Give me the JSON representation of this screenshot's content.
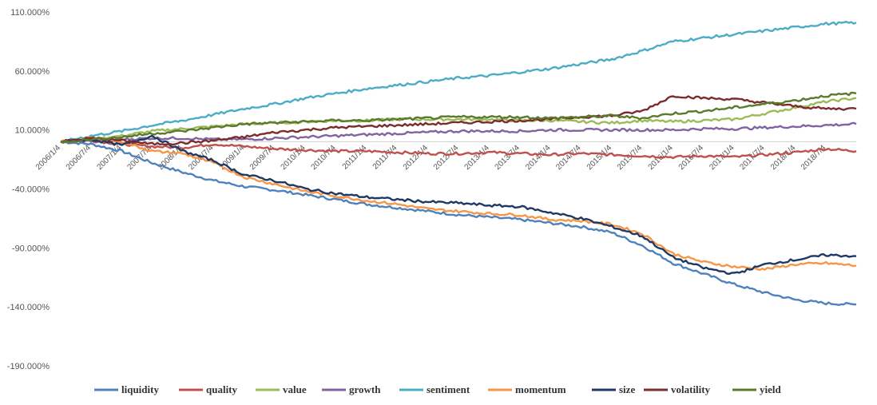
{
  "chart_data": {
    "type": "line",
    "title": "",
    "xlabel": "",
    "ylabel": "",
    "ylim": [
      -190,
      110
    ],
    "yticks": [
      "110.000%",
      "60.000%",
      "10.000%",
      "-40.000%",
      "-90.000%",
      "-140.000%",
      "-190.000%"
    ],
    "ytick_values": [
      110,
      60,
      10,
      -40,
      -90,
      -140,
      -190
    ],
    "xticks": [
      "2006/1/4",
      "2006/7/4",
      "2007/1/4",
      "2007/7/4",
      "2008/1/4",
      "2008/7/4",
      "2009/1/4",
      "2009/7/4",
      "2010/1/4",
      "2010/7/4",
      "2011/1/4",
      "2011/7/4",
      "2012/1/4",
      "2012/7/4",
      "2013/1/4",
      "2013/7/4",
      "2014/1/4",
      "2014/7/4",
      "2015/1/4",
      "2015/7/4",
      "2016/1/4",
      "2016/7/4",
      "2017/1/4",
      "2017/7/4",
      "2018/1/4",
      "2018/7/4"
    ],
    "x_range": [
      "2006/1/4",
      "2018/12/31"
    ],
    "grid": false,
    "legend_position": "bottom",
    "series": [
      {
        "name": "liquidity",
        "color": "#4F81BD",
        "points": [
          [
            "2006/1/4",
            0
          ],
          [
            "2006/7/4",
            -2
          ],
          [
            "2007/1/4",
            -8
          ],
          [
            "2007/7/4",
            -18
          ],
          [
            "2008/1/4",
            -26
          ],
          [
            "2008/7/4",
            -33
          ],
          [
            "2009/1/4",
            -38
          ],
          [
            "2009/7/4",
            -41
          ],
          [
            "2010/1/4",
            -45
          ],
          [
            "2010/7/4",
            -49
          ],
          [
            "2011/1/4",
            -53
          ],
          [
            "2011/7/4",
            -56
          ],
          [
            "2012/1/4",
            -59
          ],
          [
            "2012/7/4",
            -62
          ],
          [
            "2013/1/4",
            -64
          ],
          [
            "2013/7/4",
            -66
          ],
          [
            "2014/1/4",
            -69
          ],
          [
            "2014/7/4",
            -72
          ],
          [
            "2015/1/4",
            -77
          ],
          [
            "2015/7/4",
            -88
          ],
          [
            "2016/1/4",
            -103
          ],
          [
            "2016/7/4",
            -112
          ],
          [
            "2017/1/4",
            -121
          ],
          [
            "2017/7/4",
            -128
          ],
          [
            "2018/1/4",
            -134
          ],
          [
            "2018/7/4",
            -137
          ],
          [
            "2018/12/31",
            -138
          ]
        ]
      },
      {
        "name": "quality",
        "color": "#C0504D",
        "points": [
          [
            "2006/1/4",
            0
          ],
          [
            "2006/7/4",
            1
          ],
          [
            "2007/1/4",
            -2
          ],
          [
            "2007/7/4",
            -4
          ],
          [
            "2008/1/4",
            -5
          ],
          [
            "2008/7/4",
            -2
          ],
          [
            "2009/1/4",
            -4
          ],
          [
            "2009/7/4",
            -6
          ],
          [
            "2010/1/4",
            -7
          ],
          [
            "2010/7/4",
            -8
          ],
          [
            "2011/1/4",
            -8
          ],
          [
            "2011/7/4",
            -9
          ],
          [
            "2012/1/4",
            -10
          ],
          [
            "2012/7/4",
            -10
          ],
          [
            "2013/1/4",
            -9
          ],
          [
            "2013/7/4",
            -10
          ],
          [
            "2014/1/4",
            -11
          ],
          [
            "2014/7/4",
            -10
          ],
          [
            "2015/1/4",
            -11
          ],
          [
            "2015/7/4",
            -12
          ],
          [
            "2016/1/4",
            -13
          ],
          [
            "2016/7/4",
            -12
          ],
          [
            "2017/1/4",
            -13
          ],
          [
            "2017/7/4",
            -11
          ],
          [
            "2018/1/4",
            -9
          ],
          [
            "2018/7/4",
            -6
          ],
          [
            "2018/12/31",
            -8
          ]
        ]
      },
      {
        "name": "value",
        "color": "#9BBB59",
        "points": [
          [
            "2006/1/4",
            0
          ],
          [
            "2006/7/4",
            2
          ],
          [
            "2007/1/4",
            5
          ],
          [
            "2007/7/4",
            9
          ],
          [
            "2008/1/4",
            11
          ],
          [
            "2008/7/4",
            13
          ],
          [
            "2009/1/4",
            15
          ],
          [
            "2009/7/4",
            16
          ],
          [
            "2010/1/4",
            17
          ],
          [
            "2010/7/4",
            18
          ],
          [
            "2011/1/4",
            18
          ],
          [
            "2011/7/4",
            19
          ],
          [
            "2012/1/4",
            19
          ],
          [
            "2012/7/4",
            19
          ],
          [
            "2013/1/4",
            19
          ],
          [
            "2013/7/4",
            18
          ],
          [
            "2014/1/4",
            18
          ],
          [
            "2014/7/4",
            17
          ],
          [
            "2015/1/4",
            16
          ],
          [
            "2015/7/4",
            18
          ],
          [
            "2016/1/4",
            17
          ],
          [
            "2016/7/4",
            18
          ],
          [
            "2017/1/4",
            19
          ],
          [
            "2017/7/4",
            24
          ],
          [
            "2018/1/4",
            29
          ],
          [
            "2018/7/4",
            34
          ],
          [
            "2018/12/31",
            37
          ]
        ]
      },
      {
        "name": "growth",
        "color": "#8064A2",
        "points": [
          [
            "2006/1/4",
            0
          ],
          [
            "2006/7/4",
            1
          ],
          [
            "2007/1/4",
            2
          ],
          [
            "2007/7/4",
            3
          ],
          [
            "2008/1/4",
            3
          ],
          [
            "2008/7/4",
            2
          ],
          [
            "2009/1/4",
            2
          ],
          [
            "2009/7/4",
            3
          ],
          [
            "2010/1/4",
            4
          ],
          [
            "2010/7/4",
            5
          ],
          [
            "2011/1/4",
            6
          ],
          [
            "2011/7/4",
            7
          ],
          [
            "2012/1/4",
            8
          ],
          [
            "2012/7/4",
            9
          ],
          [
            "2013/1/4",
            9
          ],
          [
            "2013/7/4",
            9
          ],
          [
            "2014/1/4",
            10
          ],
          [
            "2014/7/4",
            10
          ],
          [
            "2015/1/4",
            10
          ],
          [
            "2015/7/4",
            10
          ],
          [
            "2016/1/4",
            10
          ],
          [
            "2016/7/4",
            11
          ],
          [
            "2017/1/4",
            11
          ],
          [
            "2017/7/4",
            12
          ],
          [
            "2018/1/4",
            13
          ],
          [
            "2018/7/4",
            14
          ],
          [
            "2018/12/31",
            15
          ]
        ]
      },
      {
        "name": "sentiment",
        "color": "#4BACC6",
        "points": [
          [
            "2006/1/4",
            0
          ],
          [
            "2006/7/4",
            5
          ],
          [
            "2007/1/4",
            9
          ],
          [
            "2007/7/4",
            14
          ],
          [
            "2008/1/4",
            18
          ],
          [
            "2008/7/4",
            23
          ],
          [
            "2009/1/4",
            28
          ],
          [
            "2009/7/4",
            32
          ],
          [
            "2010/1/4",
            37
          ],
          [
            "2010/7/4",
            41
          ],
          [
            "2011/1/4",
            45
          ],
          [
            "2011/7/4",
            48
          ],
          [
            "2012/1/4",
            51
          ],
          [
            "2012/7/4",
            54
          ],
          [
            "2013/1/4",
            56
          ],
          [
            "2013/7/4",
            59
          ],
          [
            "2014/1/4",
            62
          ],
          [
            "2014/7/4",
            66
          ],
          [
            "2015/1/4",
            70
          ],
          [
            "2015/7/4",
            77
          ],
          [
            "2016/1/4",
            85
          ],
          [
            "2016/7/4",
            88
          ],
          [
            "2017/1/4",
            91
          ],
          [
            "2017/7/4",
            94
          ],
          [
            "2018/1/4",
            97
          ],
          [
            "2018/7/4",
            100
          ],
          [
            "2018/12/31",
            101
          ]
        ]
      },
      {
        "name": "momentum",
        "color": "#F79646",
        "points": [
          [
            "2006/1/4",
            0
          ],
          [
            "2006/7/4",
            3
          ],
          [
            "2007/1/4",
            0
          ],
          [
            "2007/7/4",
            -8
          ],
          [
            "2008/1/4",
            -10
          ],
          [
            "2008/7/4",
            -18
          ],
          [
            "2009/1/4",
            -30
          ],
          [
            "2009/7/4",
            -36
          ],
          [
            "2010/1/4",
            -42
          ],
          [
            "2010/7/4",
            -46
          ],
          [
            "2011/1/4",
            -50
          ],
          [
            "2011/7/4",
            -53
          ],
          [
            "2012/1/4",
            -57
          ],
          [
            "2012/7/4",
            -59
          ],
          [
            "2013/1/4",
            -61
          ],
          [
            "2013/7/4",
            -62
          ],
          [
            "2014/1/4",
            -66
          ],
          [
            "2014/7/4",
            -67
          ],
          [
            "2015/1/4",
            -70
          ],
          [
            "2015/7/4",
            -78
          ],
          [
            "2016/1/4",
            -95
          ],
          [
            "2016/7/4",
            -102
          ],
          [
            "2017/1/4",
            -106
          ],
          [
            "2017/7/4",
            -108
          ],
          [
            "2018/1/4",
            -104
          ],
          [
            "2018/7/4",
            -103
          ],
          [
            "2018/12/31",
            -105
          ]
        ]
      },
      {
        "name": "size",
        "color": "#1F3864",
        "points": [
          [
            "2006/1/4",
            0
          ],
          [
            "2006/7/4",
            2
          ],
          [
            "2007/1/4",
            -3
          ],
          [
            "2007/7/4",
            5
          ],
          [
            "2008/1/4",
            -8
          ],
          [
            "2008/7/4",
            -16
          ],
          [
            "2009/1/4",
            -28
          ],
          [
            "2009/7/4",
            -33
          ],
          [
            "2010/1/4",
            -40
          ],
          [
            "2010/7/4",
            -44
          ],
          [
            "2011/1/4",
            -47
          ],
          [
            "2011/7/4",
            -49
          ],
          [
            "2012/1/4",
            -51
          ],
          [
            "2012/7/4",
            -52
          ],
          [
            "2013/1/4",
            -54
          ],
          [
            "2013/7/4",
            -55
          ],
          [
            "2014/1/4",
            -60
          ],
          [
            "2014/7/4",
            -65
          ],
          [
            "2015/1/4",
            -72
          ],
          [
            "2015/7/4",
            -80
          ],
          [
            "2016/1/4",
            -98
          ],
          [
            "2016/7/4",
            -107
          ],
          [
            "2017/1/4",
            -112
          ],
          [
            "2017/7/4",
            -104
          ],
          [
            "2018/1/4",
            -100
          ],
          [
            "2018/7/4",
            -96
          ],
          [
            "2018/12/31",
            -97
          ]
        ]
      },
      {
        "name": "volatility",
        "color": "#7B2C2C",
        "points": [
          [
            "2006/1/4",
            0
          ],
          [
            "2006/7/4",
            3
          ],
          [
            "2007/1/4",
            1
          ],
          [
            "2007/7/4",
            -2
          ],
          [
            "2008/1/4",
            -1
          ],
          [
            "2008/7/4",
            1
          ],
          [
            "2009/1/4",
            4
          ],
          [
            "2009/7/4",
            8
          ],
          [
            "2010/1/4",
            10
          ],
          [
            "2010/7/4",
            12
          ],
          [
            "2011/1/4",
            13
          ],
          [
            "2011/7/4",
            14
          ],
          [
            "2012/1/4",
            15
          ],
          [
            "2012/7/4",
            16
          ],
          [
            "2013/1/4",
            17
          ],
          [
            "2013/7/4",
            18
          ],
          [
            "2014/1/4",
            19
          ],
          [
            "2014/7/4",
            21
          ],
          [
            "2015/1/4",
            22
          ],
          [
            "2015/7/4",
            26
          ],
          [
            "2016/1/4",
            39
          ],
          [
            "2016/7/4",
            37
          ],
          [
            "2017/1/4",
            36
          ],
          [
            "2017/7/4",
            33
          ],
          [
            "2018/1/4",
            30
          ],
          [
            "2018/7/4",
            28
          ],
          [
            "2018/12/31",
            28
          ]
        ]
      },
      {
        "name": "yield",
        "color": "#5A7A2E",
        "points": [
          [
            "2006/1/4",
            0
          ],
          [
            "2006/7/4",
            2
          ],
          [
            "2007/1/4",
            4
          ],
          [
            "2007/7/4",
            7
          ],
          [
            "2008/1/4",
            9
          ],
          [
            "2008/7/4",
            12
          ],
          [
            "2009/1/4",
            15
          ],
          [
            "2009/7/4",
            16
          ],
          [
            "2010/1/4",
            17
          ],
          [
            "2010/7/4",
            18
          ],
          [
            "2011/1/4",
            18
          ],
          [
            "2011/7/4",
            19
          ],
          [
            "2012/1/4",
            20
          ],
          [
            "2012/7/4",
            21
          ],
          [
            "2013/1/4",
            21
          ],
          [
            "2013/7/4",
            21
          ],
          [
            "2014/1/4",
            20
          ],
          [
            "2014/7/4",
            21
          ],
          [
            "2015/1/4",
            22
          ],
          [
            "2015/7/4",
            20
          ],
          [
            "2016/1/4",
            24
          ],
          [
            "2016/7/4",
            26
          ],
          [
            "2017/1/4",
            29
          ],
          [
            "2017/7/4",
            32
          ],
          [
            "2018/1/4",
            35
          ],
          [
            "2018/7/4",
            39
          ],
          [
            "2018/12/31",
            41
          ]
        ]
      }
    ]
  }
}
